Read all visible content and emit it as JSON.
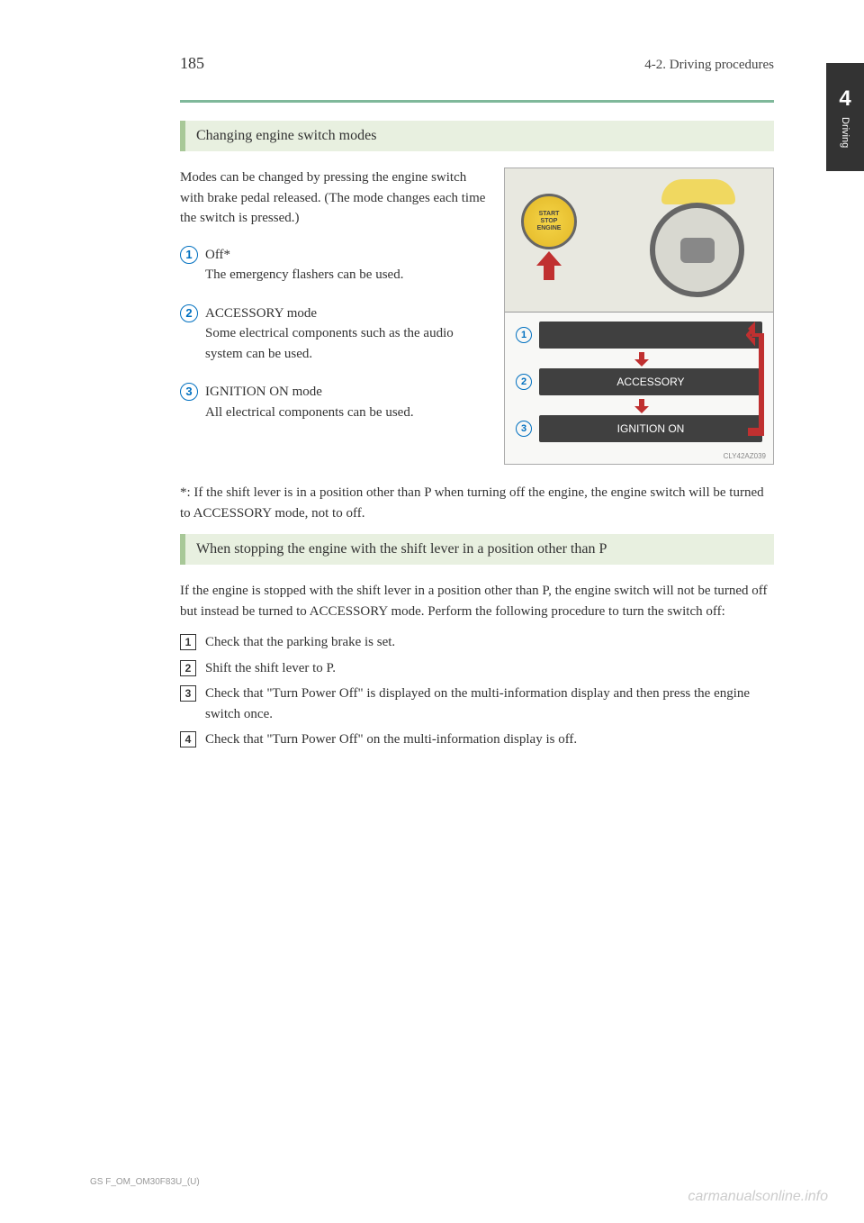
{
  "header": {
    "page_number": "185",
    "section": "4-2. Driving procedures"
  },
  "side_tab": {
    "number": "4",
    "label": "Driving"
  },
  "section1": {
    "title": "Changing engine switch modes",
    "intro": "Modes can be changed by pressing the engine switch with brake pedal released. (The mode changes each time the switch is pressed.)",
    "modes": [
      {
        "num": "1",
        "label": "Off*",
        "desc": "The emergency flashers can be used."
      },
      {
        "num": "2",
        "label": "ACCESSORY mode",
        "desc": "Some electrical components such as the audio system can be used."
      },
      {
        "num": "3",
        "label": "IGNITION ON mode",
        "desc": "All electrical components can be used."
      }
    ],
    "diagram": {
      "button_label": "START\nSTOP\nENGINE",
      "boxes": [
        "",
        "ACCESSORY",
        "IGNITION ON"
      ],
      "ref": "CLY42AZ039",
      "arrow_color": "#c03030",
      "box_bg": "#404040",
      "circle_color": "#0070c0"
    },
    "footnote": "*: If the shift lever is in a position other than P when turning off the engine, the engine switch will be turned to ACCESSORY mode, not to off."
  },
  "section2": {
    "title": "When stopping the engine with the shift lever in a position other than P",
    "intro": "If the engine is stopped with the shift lever in a position other than P, the engine switch will not be turned off but instead be turned to ACCESSORY mode. Perform the following procedure to turn the switch off:",
    "steps": [
      {
        "num": "1",
        "text": "Check that the parking brake is set."
      },
      {
        "num": "2",
        "text": "Shift the shift lever to P."
      },
      {
        "num": "3",
        "text": "Check that \"Turn Power Off\" is displayed on the multi-information display and then press the engine switch once."
      },
      {
        "num": "4",
        "text": "Check that \"Turn Power Off\" on the multi-information display is off."
      }
    ]
  },
  "footer": {
    "code": "GS F_OM_OM30F83U_(U)"
  },
  "watermark": "carmanualsonline.info",
  "colors": {
    "green_rule": "#7fb89a",
    "section_bg": "#e8f0e0",
    "section_border": "#a8c898",
    "text": "#333333",
    "circle": "#0070c0",
    "red_arrow": "#c03030",
    "box_bg": "#404040",
    "watermark": "#cccccc"
  }
}
